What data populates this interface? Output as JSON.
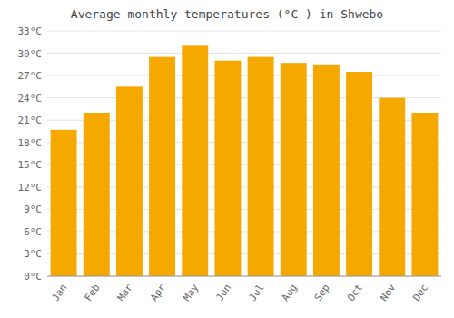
{
  "chart_data": {
    "type": "bar",
    "title": "Average monthly temperatures (°C ) in Shwebo",
    "categories": [
      "Jan",
      "Feb",
      "Mar",
      "Apr",
      "May",
      "Jun",
      "Jul",
      "Aug",
      "Sep",
      "Oct",
      "Nov",
      "Dec"
    ],
    "values": [
      19.7,
      22.0,
      25.5,
      29.5,
      31.0,
      29.0,
      29.5,
      28.7,
      28.5,
      27.5,
      24.0,
      22.0
    ],
    "color": "#F5A800",
    "ylim": [
      0,
      33
    ],
    "yticks": [
      {
        "value": 0,
        "label": "0°C"
      },
      {
        "value": 3,
        "label": "3°C"
      },
      {
        "value": 6,
        "label": "6°C"
      },
      {
        "value": 9,
        "label": "9°C"
      },
      {
        "value": 12,
        "label": "12°C"
      },
      {
        "value": 15,
        "label": "15°C"
      },
      {
        "value": 18,
        "label": "18°C"
      },
      {
        "value": 21,
        "label": "21°C"
      },
      {
        "value": 24,
        "label": "24°C"
      },
      {
        "value": 27,
        "label": "27°C"
      },
      {
        "value": 30,
        "label": "30°C"
      },
      {
        "value": 33,
        "label": "33°C"
      }
    ],
    "grid": true
  }
}
